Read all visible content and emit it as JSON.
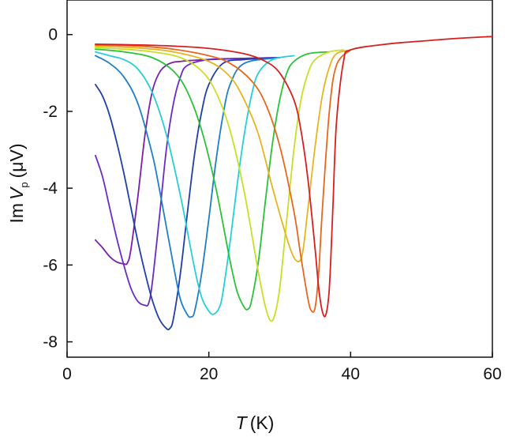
{
  "chart_data": {
    "type": "line",
    "xlabel_symbol": "T",
    "xlabel_unit": "(K)",
    "ylabel_prefix": "Im",
    "ylabel_symbol": "V",
    "ylabel_subscript": "p",
    "ylabel_unit": "(μV)",
    "xlim": [
      0,
      60
    ],
    "ylim": [
      -8.4,
      0.9
    ],
    "xticks": [
      0,
      20,
      40,
      60
    ],
    "xtick_labels": [
      "0",
      "20",
      "40",
      "60"
    ],
    "yticks": [
      0,
      -2,
      -4,
      -6,
      -8
    ],
    "ytick_labels": [
      "0",
      "-2",
      "-4",
      "-6",
      "-8"
    ],
    "grid": false,
    "legend": "none",
    "series": [
      {
        "color": "#7a1fa8",
        "x": [
          4,
          5,
          6,
          7,
          8,
          8.5,
          9,
          10,
          11,
          12,
          13,
          14,
          15,
          16,
          17,
          20,
          25,
          30
        ],
        "y": [
          -5.35,
          -5.55,
          -5.78,
          -5.92,
          -5.97,
          -5.95,
          -5.6,
          -4.2,
          -2.6,
          -1.5,
          -1.0,
          -0.8,
          -0.72,
          -0.7,
          -0.68,
          -0.65,
          -0.62,
          -0.6
        ]
      },
      {
        "color": "#6a2bc4",
        "x": [
          4,
          5,
          6,
          7,
          8,
          9,
          10,
          11,
          11.5,
          12,
          13,
          14,
          15,
          16,
          17,
          20,
          25,
          30
        ],
        "y": [
          -3.15,
          -3.7,
          -4.5,
          -5.3,
          -6.0,
          -6.6,
          -6.95,
          -7.05,
          -7.0,
          -6.5,
          -4.8,
          -3.0,
          -1.8,
          -1.1,
          -0.8,
          -0.65,
          -0.62,
          -0.6
        ]
      },
      {
        "color": "#1f3fa6",
        "x": [
          4,
          5,
          6,
          7,
          8,
          9,
          10,
          11,
          12,
          13,
          14,
          14.5,
          15,
          16,
          17,
          18,
          19,
          20,
          22,
          25,
          30
        ],
        "y": [
          -1.3,
          -1.6,
          -2.1,
          -2.8,
          -3.6,
          -4.5,
          -5.4,
          -6.2,
          -6.9,
          -7.4,
          -7.65,
          -7.65,
          -7.4,
          -6.2,
          -4.6,
          -3.1,
          -2.0,
          -1.3,
          -0.75,
          -0.65,
          -0.6
        ]
      },
      {
        "color": "#1e7ec8",
        "x": [
          4,
          6,
          8,
          10,
          12,
          13,
          14,
          15,
          16,
          17,
          17.5,
          18,
          19,
          20,
          21,
          22,
          23,
          25,
          30
        ],
        "y": [
          -0.55,
          -0.75,
          -1.1,
          -1.8,
          -3.1,
          -4.0,
          -5.0,
          -6.0,
          -6.9,
          -7.3,
          -7.35,
          -7.2,
          -6.2,
          -4.8,
          -3.3,
          -2.1,
          -1.3,
          -0.75,
          -0.6
        ]
      },
      {
        "color": "#26cfd8",
        "x": [
          4,
          6,
          8,
          10,
          12,
          14,
          16,
          18,
          19,
          20,
          20.7,
          21.5,
          22,
          23,
          24,
          25,
          26,
          27,
          29,
          32
        ],
        "y": [
          -0.45,
          -0.55,
          -0.65,
          -0.9,
          -1.5,
          -2.6,
          -4.2,
          -6.1,
          -6.85,
          -7.2,
          -7.28,
          -7.1,
          -6.7,
          -5.4,
          -3.9,
          -2.6,
          -1.6,
          -1.0,
          -0.65,
          -0.55
        ]
      },
      {
        "color": "#2bc23a",
        "x": [
          4,
          8,
          12,
          15,
          17,
          19,
          21,
          23,
          24,
          25,
          25.5,
          26,
          27,
          28,
          29,
          30,
          31,
          32,
          34,
          37
        ],
        "y": [
          -0.38,
          -0.45,
          -0.6,
          -0.95,
          -1.5,
          -2.5,
          -4.0,
          -5.9,
          -6.7,
          -7.1,
          -7.15,
          -6.95,
          -5.9,
          -4.3,
          -2.8,
          -1.7,
          -1.0,
          -0.7,
          -0.5,
          -0.45
        ]
      },
      {
        "color": "#c9df24",
        "x": [
          4,
          8,
          12,
          16,
          19,
          21,
          23,
          25,
          27,
          28,
          28.7,
          29.3,
          30,
          31,
          32,
          33,
          34,
          35,
          37,
          39
        ],
        "y": [
          -0.34,
          -0.38,
          -0.45,
          -0.6,
          -0.95,
          -1.5,
          -2.5,
          -4.1,
          -6.2,
          -7.1,
          -7.45,
          -7.3,
          -6.6,
          -4.8,
          -3.0,
          -1.7,
          -1.0,
          -0.65,
          -0.45,
          -0.4
        ]
      },
      {
        "color": "#e7b420",
        "x": [
          4,
          10,
          15,
          20,
          23,
          25,
          27,
          29,
          31,
          32,
          32.8,
          33.3,
          34,
          35,
          36,
          37,
          38,
          40
        ],
        "y": [
          -0.3,
          -0.35,
          -0.45,
          -0.7,
          -1.1,
          -1.7,
          -2.6,
          -4.0,
          -5.3,
          -5.8,
          -5.9,
          -5.6,
          -4.5,
          -2.9,
          -1.6,
          -0.85,
          -0.5,
          -0.4
        ]
      },
      {
        "color": "#e8661e",
        "x": [
          4,
          10,
          15,
          20,
          23,
          26,
          28,
          30,
          32,
          33,
          34,
          34.5,
          35,
          35.5,
          36,
          37,
          38,
          40
        ],
        "y": [
          -0.27,
          -0.3,
          -0.38,
          -0.55,
          -0.75,
          -1.2,
          -1.8,
          -2.9,
          -4.6,
          -5.8,
          -6.9,
          -7.2,
          -7.1,
          -6.2,
          -4.6,
          -2.0,
          -0.8,
          -0.4
        ]
      },
      {
        "color": "#d81f1f",
        "x": [
          4,
          10,
          15,
          20,
          25,
          28,
          30,
          32,
          33,
          34,
          35,
          35.5,
          36,
          36.5,
          37,
          37.5,
          38,
          39,
          40,
          45,
          50,
          55,
          60
        ],
        "y": [
          -0.25,
          -0.27,
          -0.3,
          -0.36,
          -0.5,
          -0.7,
          -1.0,
          -1.7,
          -2.5,
          -3.8,
          -5.6,
          -6.6,
          -7.2,
          -7.3,
          -6.6,
          -4.5,
          -2.3,
          -0.7,
          -0.4,
          -0.25,
          -0.17,
          -0.1,
          -0.05
        ]
      }
    ]
  }
}
